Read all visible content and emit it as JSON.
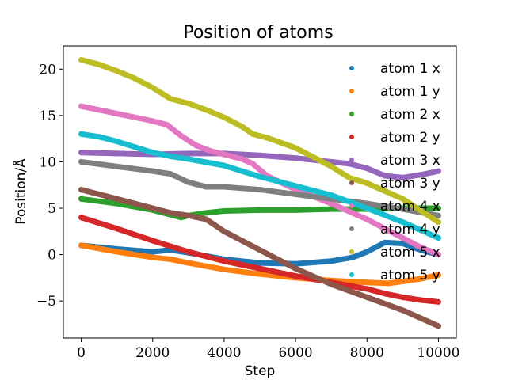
{
  "chart_data": {
    "type": "scatter",
    "title": "Position of atoms",
    "xlabel": "Step",
    "ylabel": "Position/Å",
    "xlim": [
      -500,
      10500
    ],
    "ylim": [
      -9.0,
      22.5
    ],
    "xticks": [
      0,
      2000,
      4000,
      6000,
      8000,
      10000
    ],
    "xtick_labels": [
      "0",
      "2000",
      "4000",
      "6000",
      "8000",
      "10000"
    ],
    "yticks": [
      -5,
      0,
      5,
      10,
      15,
      20
    ],
    "ytick_labels": [
      "−5",
      "0",
      "5",
      "10",
      "15",
      "20"
    ],
    "grid": false,
    "legend_position": "upper right",
    "series": [
      {
        "name": "atom 1 x",
        "color": "#1f77b4",
        "x": [
          0,
          1000,
          2000,
          2500,
          3000,
          4000,
          5000,
          6000,
          7000,
          7600,
          8000,
          8500,
          9000,
          9500,
          10000
        ],
        "y": [
          1.0,
          0.6,
          0.3,
          0.5,
          0.2,
          -0.5,
          -0.9,
          -1.0,
          -0.7,
          -0.3,
          0.3,
          1.3,
          1.2,
          0.5,
          0.0
        ]
      },
      {
        "name": "atom 1 y",
        "color": "#ff7f0e",
        "x": [
          0,
          1000,
          2000,
          2500,
          3000,
          4000,
          5000,
          6000,
          7000,
          8000,
          8600,
          9000,
          9500,
          10000
        ],
        "y": [
          1.0,
          0.3,
          -0.3,
          -0.5,
          -0.9,
          -1.6,
          -2.1,
          -2.5,
          -2.8,
          -3.0,
          -3.1,
          -2.9,
          -2.6,
          -2.2
        ]
      },
      {
        "name": "atom 2 x",
        "color": "#2ca02c",
        "x": [
          0,
          1000,
          2000,
          2500,
          2800,
          3000,
          3500,
          4000,
          5000,
          6000,
          7000,
          8000,
          9000,
          10000
        ],
        "y": [
          6.0,
          5.5,
          4.8,
          4.3,
          4.0,
          4.2,
          4.5,
          4.7,
          4.8,
          4.8,
          4.9,
          4.9,
          5.0,
          5.0
        ]
      },
      {
        "name": "atom 2 y",
        "color": "#d62728",
        "x": [
          0,
          1000,
          2000,
          3000,
          4000,
          5000,
          6000,
          7000,
          8000,
          8500,
          9000,
          9500,
          10000
        ],
        "y": [
          4.0,
          2.8,
          1.5,
          0.3,
          -0.7,
          -1.5,
          -2.3,
          -3.0,
          -3.7,
          -4.2,
          -4.6,
          -4.9,
          -5.1
        ]
      },
      {
        "name": "atom 3 x",
        "color": "#9467bd",
        "x": [
          0,
          1000,
          2000,
          3000,
          4000,
          5000,
          6000,
          7000,
          7500,
          8000,
          8500,
          9000,
          9500,
          10000
        ],
        "y": [
          11.0,
          10.9,
          10.8,
          10.9,
          10.9,
          10.7,
          10.4,
          10.0,
          9.8,
          9.3,
          8.5,
          8.3,
          8.6,
          9.0
        ]
      },
      {
        "name": "atom 3 y",
        "color": "#8c564b",
        "x": [
          0,
          1000,
          2000,
          2500,
          3000,
          3500,
          4000,
          5000,
          6000,
          7000,
          8000,
          9000,
          10000
        ],
        "y": [
          7.0,
          6.0,
          5.0,
          4.5,
          4.2,
          3.8,
          2.5,
          0.5,
          -1.5,
          -3.2,
          -4.6,
          -6.0,
          -7.7
        ]
      },
      {
        "name": "atom 4 x",
        "color": "#e377c2",
        "x": [
          0,
          500,
          1000,
          1500,
          2000,
          2400,
          2800,
          3200,
          3600,
          4000,
          4500,
          4800,
          5200,
          6000,
          7000,
          8000,
          9000,
          9500,
          10000
        ],
        "y": [
          16.0,
          15.6,
          15.2,
          14.8,
          14.4,
          14.0,
          12.8,
          11.8,
          11.2,
          10.8,
          10.3,
          9.8,
          8.5,
          7.0,
          5.5,
          3.8,
          1.8,
          0.8,
          0.0
        ]
      },
      {
        "name": "atom 4 y",
        "color": "#7f7f7f",
        "x": [
          0,
          1000,
          2000,
          2500,
          3000,
          3500,
          4000,
          5000,
          6000,
          7000,
          8000,
          9000,
          10000
        ],
        "y": [
          10.0,
          9.5,
          9.0,
          8.7,
          7.8,
          7.3,
          7.3,
          7.0,
          6.5,
          6.0,
          5.5,
          4.9,
          4.2
        ]
      },
      {
        "name": "atom 5 x",
        "color": "#bcbd22",
        "x": [
          0,
          500,
          1000,
          1500,
          2000,
          2500,
          3000,
          3500,
          4000,
          4500,
          4800,
          5200,
          6000,
          7000,
          7500,
          8000,
          9000,
          10000
        ],
        "y": [
          21.0,
          20.5,
          19.8,
          19.0,
          18.0,
          16.8,
          16.3,
          15.6,
          14.8,
          13.8,
          13.0,
          12.6,
          11.5,
          9.5,
          8.3,
          7.7,
          6.0,
          3.5
        ]
      },
      {
        "name": "atom 5 y",
        "color": "#17becf",
        "x": [
          0,
          500,
          1000,
          1500,
          2000,
          2500,
          3000,
          4000,
          5000,
          6000,
          7000,
          8000,
          9000,
          10000
        ],
        "y": [
          13.0,
          12.7,
          12.2,
          11.6,
          11.0,
          10.6,
          10.3,
          9.6,
          8.4,
          7.4,
          6.4,
          5.0,
          3.5,
          1.8
        ]
      }
    ]
  }
}
